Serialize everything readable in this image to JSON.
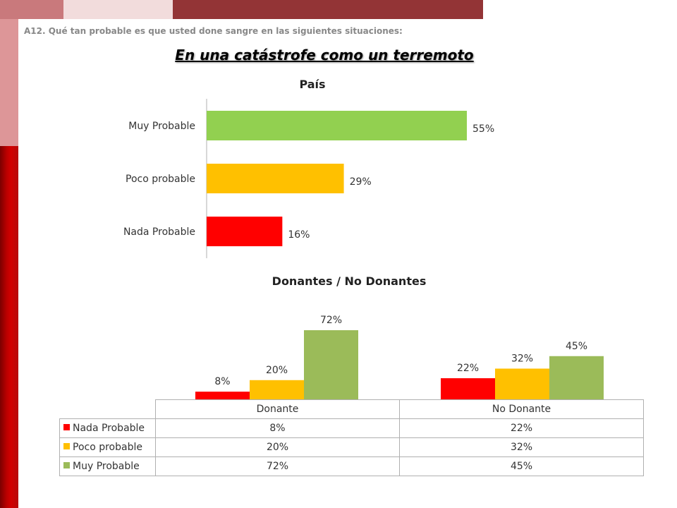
{
  "question": "A12. Qué tan probable es que usted done sangre en las siguientes situaciones:",
  "main_title": "En una catástrofe como un terremoto",
  "colors": {
    "nada": "#ff0000",
    "poco": "#ffc000",
    "muy": "#92d050",
    "muy_donors": "#9bbb59"
  },
  "chart_data": [
    {
      "type": "bar",
      "orientation": "horizontal",
      "title": "País",
      "categories": [
        "Muy Probable",
        "Poco probable",
        "Nada Probable"
      ],
      "values": [
        55,
        29,
        16
      ],
      "value_labels": [
        "55%",
        "29%",
        "16%"
      ],
      "colors": [
        "#92d050",
        "#ffc000",
        "#ff0000"
      ],
      "xlim": [
        0,
        70
      ]
    },
    {
      "type": "bar",
      "title": "Donantes / No Donantes",
      "categories": [
        "Donante",
        "No Donante"
      ],
      "series": [
        {
          "name": "Nada Probable",
          "values": [
            8,
            22
          ],
          "labels": [
            "8%",
            "22%"
          ],
          "color": "#ff0000"
        },
        {
          "name": "Poco probable",
          "values": [
            20,
            32
          ],
          "labels": [
            "20%",
            "32%"
          ],
          "color": "#ffc000"
        },
        {
          "name": "Muy Probable",
          "values": [
            72,
            45
          ],
          "labels": [
            "72%",
            "45%"
          ],
          "color": "#9bbb59"
        }
      ],
      "ylim": [
        0,
        72
      ],
      "legend": "data-table"
    }
  ]
}
